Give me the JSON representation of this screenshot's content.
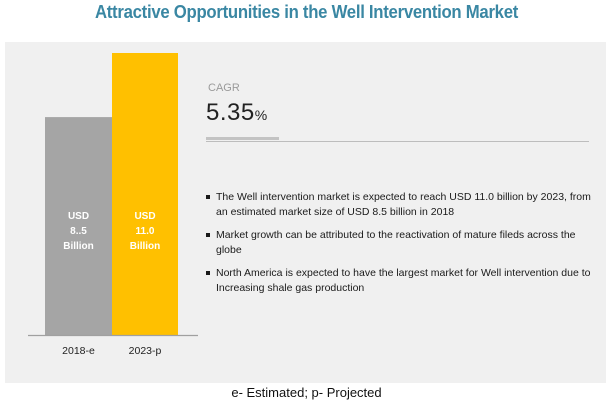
{
  "title": "Attractive Opportunities in the Well Intervention Market",
  "chart_data": {
    "type": "bar",
    "title": "Attractive Opportunities in the Well Intervention Market",
    "categories": [
      "2018-e",
      "2023-p"
    ],
    "values": [
      8.5,
      11.0
    ],
    "unit": "USD Billion",
    "bar_labels": [
      [
        "USD",
        "8..5",
        "Billion"
      ],
      [
        "USD",
        "11.0",
        "Billion"
      ]
    ],
    "colors": [
      "#a5a5a5",
      "#ffc000"
    ],
    "xlabel": "",
    "ylabel": "",
    "ylim": [
      0,
      11.0
    ],
    "grid": false,
    "legend": "none"
  },
  "cagr": {
    "label": "CAGR",
    "value": "5.35",
    "unit": "%"
  },
  "bullets": [
    "The Well intervention market is expected to reach USD 11.0 billion by 2023, from an estimated  market size of USD 8.5 billion in 2018",
    "Market growth can be attributed to the reactivation of mature fileds across the globe",
    "North America is expected to have the largest market for Well intervention due to Increasing shale gas production"
  ],
  "footer": "e- Estimated; p- Projected",
  "colors": {
    "title": "#3a87a3",
    "panel": "#f0f0f0"
  }
}
